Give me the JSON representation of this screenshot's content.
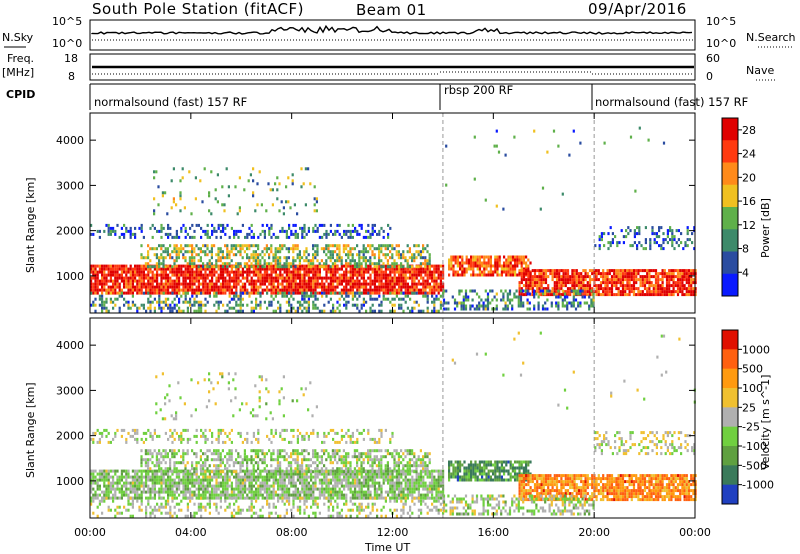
{
  "header": {
    "station": "South Pole Station (fitACF)",
    "beam": "Beam 01",
    "date": "09/Apr/2016"
  },
  "side_labels": {
    "nsky": "N.Sky",
    "nsky_ticks": [
      "10^5",
      "10^0"
    ],
    "nsearch": "N.Search",
    "nsearch_ticks": [
      "10^5",
      "10^0"
    ],
    "freq": "Freq.",
    "freq_unit": "[MHz]",
    "freq_ticks": [
      "18",
      "8"
    ],
    "nave": "Nave",
    "nave_ticks": [
      "60",
      "0"
    ],
    "cpid": "CPID"
  },
  "cpid_modes": [
    {
      "label": "normalsound (fast) 157 RF",
      "start_h": 0,
      "end_h": 14
    },
    {
      "label": "rbsp 200 RF",
      "start_h": 14,
      "end_h": 20
    },
    {
      "label": "normalsound (fast) 157 RF",
      "start_h": 20,
      "end_h": 24
    }
  ],
  "chart_data": [
    {
      "type": "heatmap",
      "parameter": "Power",
      "xlabel": "Time UT",
      "ylabel": "Slant Range [km]",
      "x_ticks": [
        "00:00",
        "04:00",
        "08:00",
        "12:00",
        "16:00",
        "20:00",
        "00:00"
      ],
      "x_range_hours": [
        0,
        24
      ],
      "y_ticks": [
        1000,
        2000,
        3000,
        4000
      ],
      "y_range_km": [
        180,
        4600
      ],
      "colorbar": {
        "label": "Power [dB]",
        "ticks": [
          "4",
          "8",
          "12",
          "16",
          "20",
          "24",
          "28"
        ],
        "range": [
          0,
          30
        ],
        "colors": [
          "#0a1aff",
          "#2a4ca0",
          "#3d8a6a",
          "#5fb04a",
          "#f0c020",
          "#ff8a1a",
          "#ff3a10",
          "#e00000"
        ]
      },
      "bands": [
        {
          "t0": 0.0,
          "t1": 14.0,
          "r0": 650,
          "r1": 1250,
          "value": 27,
          "density": 0.85
        },
        {
          "t0": 2.0,
          "t1": 13.5,
          "r0": 1200,
          "r1": 1700,
          "value": 14,
          "density": 0.55
        },
        {
          "t0": 0.0,
          "t1": 12.0,
          "r0": 1850,
          "r1": 2150,
          "value": 6,
          "density": 0.35
        },
        {
          "t0": 0.0,
          "t1": 14.0,
          "r0": 250,
          "r1": 650,
          "value": 10,
          "density": 0.35
        },
        {
          "t0": 14.2,
          "t1": 17.5,
          "r0": 1000,
          "r1": 1450,
          "value": 23,
          "density": 0.8
        },
        {
          "t0": 17.0,
          "t1": 24.0,
          "r0": 600,
          "r1": 1150,
          "value": 26,
          "density": 0.85
        },
        {
          "t0": 14.0,
          "t1": 20.0,
          "r0": 300,
          "r1": 700,
          "value": 9,
          "density": 0.45
        },
        {
          "t0": 20.0,
          "t1": 24.0,
          "r0": 1600,
          "r1": 2100,
          "value": 7,
          "density": 0.3
        },
        {
          "t0": 2.5,
          "t1": 9.0,
          "r0": 2400,
          "r1": 3400,
          "value": 12,
          "density": 0.08
        },
        {
          "t0": 14.0,
          "t1": 24.0,
          "r0": 2500,
          "r1": 4300,
          "value": 10,
          "density": 0.01
        }
      ]
    },
    {
      "type": "heatmap",
      "parameter": "Velocity",
      "xlabel": "Time UT",
      "ylabel": "Slant Range [km]",
      "x_ticks": [
        "00:00",
        "04:00",
        "08:00",
        "12:00",
        "16:00",
        "20:00",
        "00:00"
      ],
      "x_range_hours": [
        0,
        24
      ],
      "y_ticks": [
        1000,
        2000,
        3000,
        4000
      ],
      "y_range_km": [
        180,
        4600
      ],
      "colorbar": {
        "label": "Velocity [m s^-1]",
        "ticks": [
          "1000",
          "500",
          "100",
          "25",
          "-25",
          "-100",
          "-500",
          "-1000"
        ],
        "range": [
          -1200,
          1200
        ],
        "colors": [
          "#2040c0",
          "#3a7a5a",
          "#5fa040",
          "#70d040",
          "#b0b0b0",
          "#f0c030",
          "#ff9a10",
          "#ff6010",
          "#e01000"
        ]
      },
      "bands": [
        {
          "t0": 0.0,
          "t1": 14.0,
          "r0": 650,
          "r1": 1250,
          "value": -200,
          "density": 0.8
        },
        {
          "t0": 2.0,
          "t1": 13.5,
          "r0": 1200,
          "r1": 1700,
          "value": -150,
          "density": 0.55
        },
        {
          "t0": 0.0,
          "t1": 12.0,
          "r0": 1850,
          "r1": 2150,
          "value": -40,
          "density": 0.3
        },
        {
          "t0": 0.0,
          "t1": 14.0,
          "r0": 250,
          "r1": 650,
          "value": -60,
          "density": 0.3
        },
        {
          "t0": 14.2,
          "t1": 17.5,
          "r0": 1000,
          "r1": 1450,
          "value": -600,
          "density": 0.8
        },
        {
          "t0": 17.0,
          "t1": 24.0,
          "r0": 600,
          "r1": 1150,
          "value": 600,
          "density": 0.85
        },
        {
          "t0": 14.0,
          "t1": 20.0,
          "r0": 300,
          "r1": 700,
          "value": -120,
          "density": 0.45
        },
        {
          "t0": 20.0,
          "t1": 24.0,
          "r0": 1600,
          "r1": 2100,
          "value": 40,
          "density": 0.3
        },
        {
          "t0": 2.5,
          "t1": 9.0,
          "r0": 2400,
          "r1": 3400,
          "value": -80,
          "density": 0.08
        },
        {
          "t0": 14.0,
          "t1": 24.0,
          "r0": 2500,
          "r1": 4300,
          "value": 0,
          "density": 0.01
        }
      ]
    }
  ]
}
